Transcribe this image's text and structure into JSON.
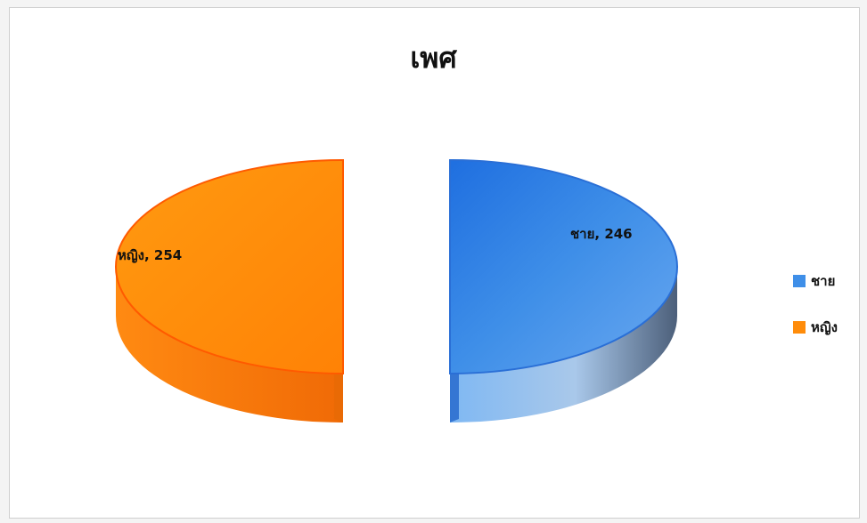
{
  "chart_data": {
    "type": "pie",
    "title": "เพศ",
    "slices": [
      {
        "name": "ชาย",
        "value": 246,
        "data_label": "ชาย, 246",
        "color": "#3f8fe8"
      },
      {
        "name": "หญิง",
        "value": 254,
        "data_label": "หญิง, 254",
        "color": "#ff8c0a"
      }
    ],
    "legend": {
      "position": "right",
      "entries": [
        {
          "label": "ชาย",
          "color": "#3f8fe8"
        },
        {
          "label": "หญิง",
          "color": "#ff8c0a"
        }
      ]
    },
    "style": "3d-exploded"
  }
}
